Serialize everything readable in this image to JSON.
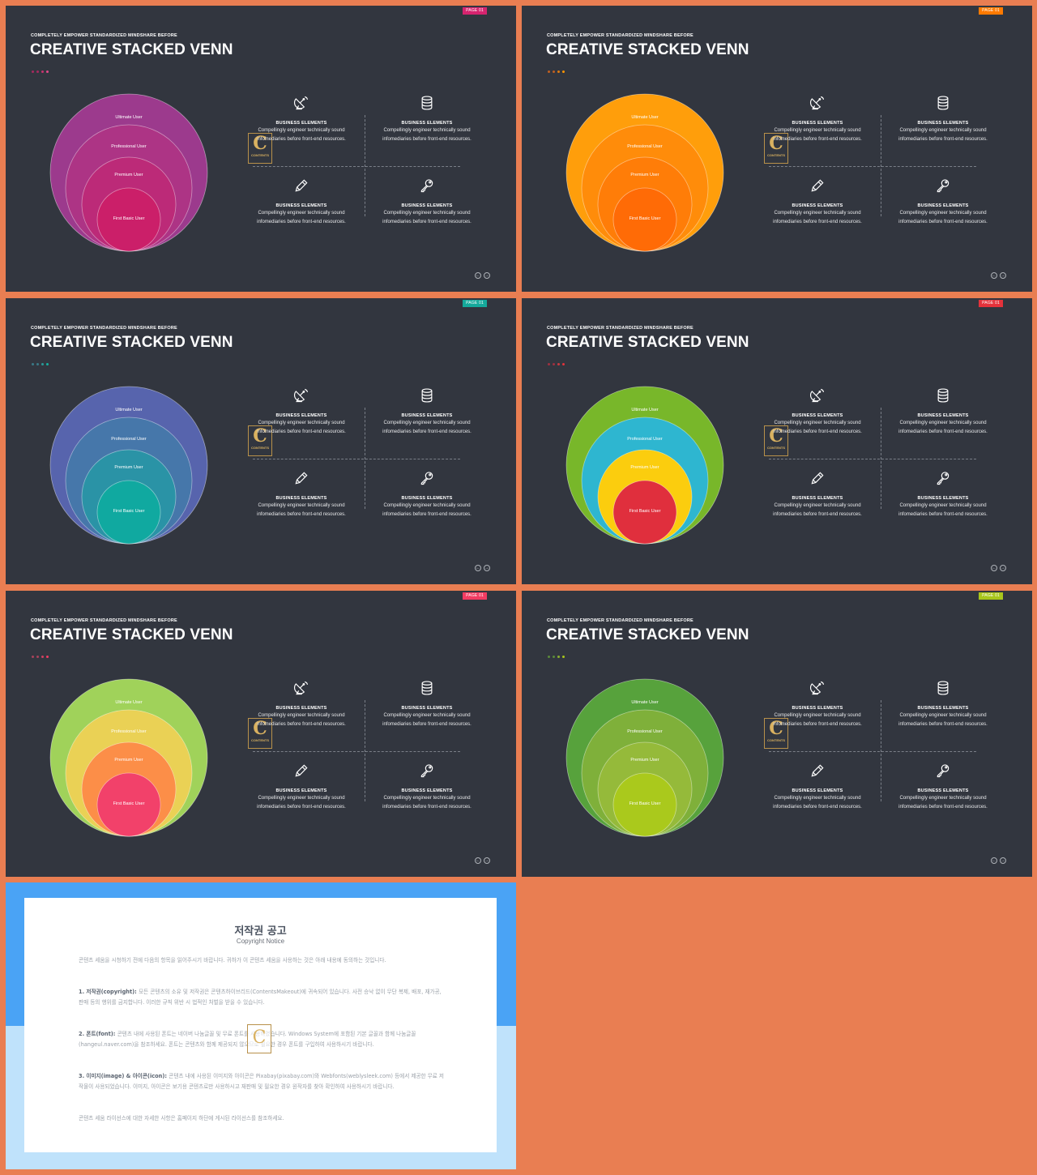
{
  "slide_common": {
    "kicker": "COMPLETELY  EMPOWER STANDARDIZED  MINDSHARE  BEFORE",
    "title": "CREATIVE STACKED VENN",
    "page_tag": "PAGE 01",
    "logo_letter": "C",
    "logo_text": "CONTENTS",
    "venn_labels": [
      "Ultimate User",
      "Professional User",
      "Premium User",
      "First Basic User"
    ],
    "quad_heading": "BUSINESS  ELEMENTS",
    "quad_body": "Compellingly engineer technically sound infomediaries before front-end resources.",
    "icons": [
      "satellite-dish-icon",
      "database-icon",
      "pencil-icon",
      "key-icon"
    ],
    "nav_prev": "←",
    "nav_next": "→"
  },
  "slides": [
    {
      "tag_color": "#d6246f",
      "dot_colors": [
        "#a52a5f",
        "#a52a5f",
        "#c8336f",
        "#e24a8a"
      ],
      "circle_colors": [
        "#9c3a8d",
        "#ad3485",
        "#bc2a78",
        "#cb1f69"
      ]
    },
    {
      "tag_color": "#ff7a00",
      "dot_colors": [
        "#c06020",
        "#c06020",
        "#e07a10",
        "#ff9500"
      ],
      "circle_colors": [
        "#ff9e0b",
        "#ff8c0a",
        "#ff7d08",
        "#ff6b06"
      ]
    },
    {
      "tag_color": "#15a99b",
      "dot_colors": [
        "#3a7a88",
        "#3a7a88",
        "#2a9a98",
        "#15b0a0"
      ],
      "circle_colors": [
        "#5764ad",
        "#4677aa",
        "#2a93a6",
        "#10a9a0"
      ]
    },
    {
      "tag_color": "#e4323b",
      "dot_colors": [
        "#a03040",
        "#a03040",
        "#c83a40",
        "#e4323b"
      ],
      "circle_colors": [
        "#78b72a",
        "#2eb6d0",
        "#fbcd0e",
        "#e02f3d"
      ]
    },
    {
      "tag_color": "#f23c62",
      "dot_colors": [
        "#a8425a",
        "#a8425a",
        "#d04060",
        "#f23c62"
      ],
      "circle_colors": [
        "#a0d25a",
        "#ead155",
        "#fc8e48",
        "#f2416a"
      ]
    },
    {
      "tag_color": "#a8c61c",
      "dot_colors": [
        "#5a8a3a",
        "#5a8a3a",
        "#8ab030",
        "#a8c61c"
      ],
      "circle_colors": [
        "#57a23c",
        "#7fb03a",
        "#95ba3a",
        "#aac91c"
      ]
    }
  ],
  "copyright": {
    "title": "저작권 공고",
    "subtitle": "Copyright Notice",
    "p0": "콘텐츠 세움을 시청하기 전에 다음의 항목을 읽어주시기 바랍니다. 귀하가 이 콘텐츠 세움을 사용하는 것은 아래 내용에 동의하는 것입니다.",
    "p1_head": "1. 저작권(copyright): ",
    "p1": "모든 콘텐츠의 소유 및 저작권은 콘텐츠하이브리드(ContentsMakeout)에 귀속되어 있습니다. 사전 승낙 없이 무단 복제, 배포, 재가공, 판매 등의 행위를 금지합니다. 이러한 규칙 위반 시 법적인 처벌을 받을 수 있습니다.",
    "p2_head": "2. 폰트(font): ",
    "p2": "콘텐츠 내에 사용된 폰트는 네이버 나눔글꼴 및 무료 폰트를 사용하였습니다. Windows System에 포함된 기본 글꼴과 함께 나눔글꼴(hangeul.naver.com)을 참조하세요. 폰트는 콘텐츠와 함께 제공되지 않으므로 필요한 경우 폰트를 구입하여 사용하시기 바랍니다.",
    "p3_head": "3. 이미지(image) & 아이콘(icon): ",
    "p3": "콘텐츠 내에 사용된 이미지와 아이콘은 Pixabay(pixabay.com)와 Webfonts(weblysleek.com) 등에서 제공한 무료 저작물이 사용되었습니다. 이미지, 아이콘은 보기용 콘텐츠로만 사용하시고 재판매 및 필요한 경우 원작자를 찾아 확인하여 사용하시기 바랍니다.",
    "p4": "콘텐츠 세움 라이선스에 대한 자세한 사항은 홈페이지 하단에 게시된 라이선스를 참조하세요."
  }
}
